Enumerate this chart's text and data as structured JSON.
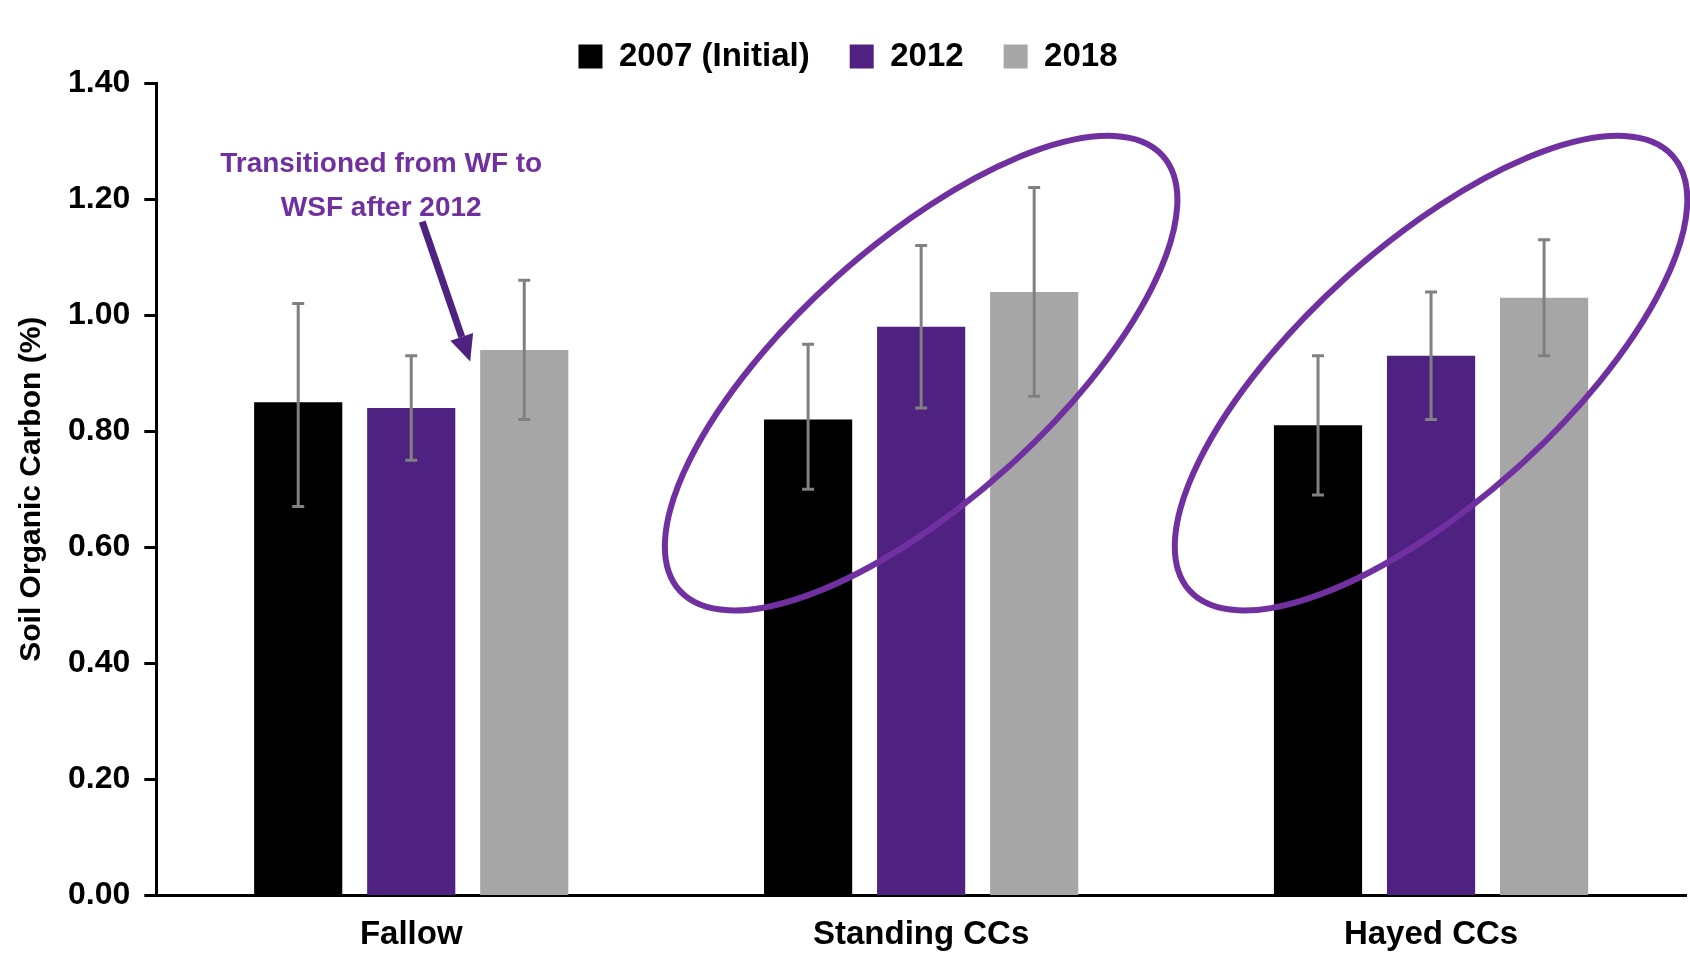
{
  "chart_data": {
    "type": "bar",
    "ylabel": "Soil Organic Carbon (%)",
    "categories": [
      "Fallow",
      "Standing CCs",
      "Hayed CCs"
    ],
    "series": [
      {
        "name": "2007 (Initial)",
        "color": "#000000",
        "values": [
          0.85,
          0.82,
          0.81
        ],
        "errors": [
          [
            0.67,
            1.02
          ],
          [
            0.7,
            0.95
          ],
          [
            0.69,
            0.93
          ]
        ]
      },
      {
        "name": "2012",
        "color": "#4f2282",
        "values": [
          0.84,
          0.98,
          0.93
        ],
        "errors": [
          [
            0.75,
            0.93
          ],
          [
            0.84,
            1.12
          ],
          [
            0.82,
            1.04
          ]
        ]
      },
      {
        "name": "2018",
        "color": "#a6a6a6",
        "values": [
          0.94,
          1.04,
          1.03
        ],
        "errors": [
          [
            0.82,
            1.06
          ],
          [
            0.86,
            1.22
          ],
          [
            0.93,
            1.13
          ]
        ]
      }
    ],
    "ylim": [
      0,
      1.4
    ],
    "yticks": [
      {
        "value": 0,
        "label": "0.00"
      },
      {
        "value": 0.2,
        "label": "0.20"
      },
      {
        "value": 0.4,
        "label": "0.40"
      },
      {
        "value": 0.6,
        "label": "0.60"
      },
      {
        "value": 0.8,
        "label": "0.80"
      },
      {
        "value": 1,
        "label": "1.00"
      },
      {
        "value": 1.2,
        "label": "1.20"
      },
      {
        "value": 1.4,
        "label": "1.40"
      }
    ],
    "grid": false,
    "legend": "top",
    "annotations": [
      "Transitioned from WF to WSF after 2012"
    ]
  }
}
